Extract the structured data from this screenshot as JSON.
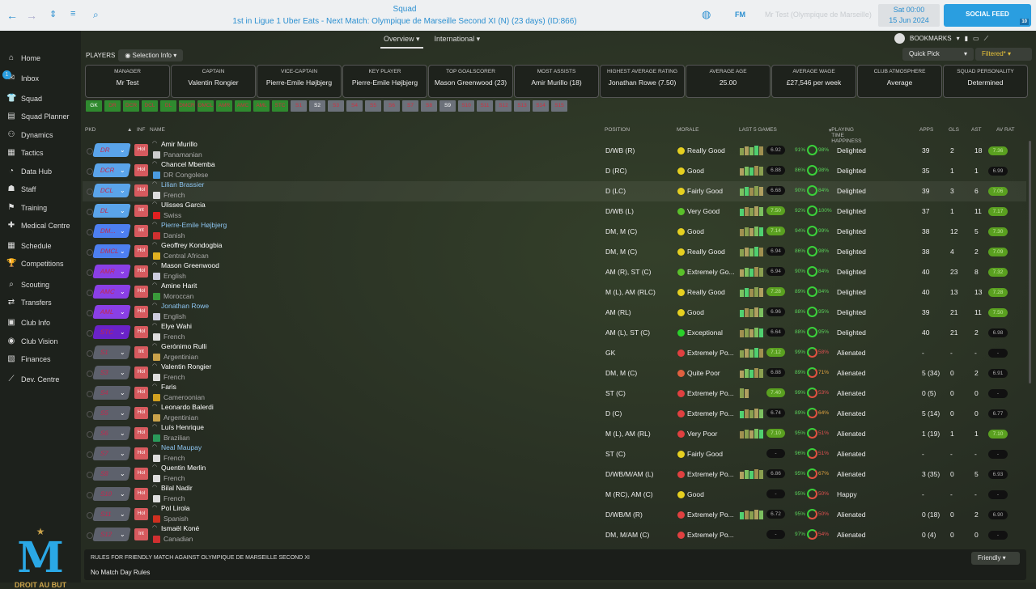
{
  "topbar": {
    "title": "Squad",
    "subtitle": "1st in Ligue 1 Uber Eats - Next Match: Olympique de Marseille Second XI (N) (23 days) (ID:866)",
    "fm": "FM",
    "manager_select": "Mr Test (Olympique de Marseille)",
    "time": "Sat 00:00",
    "date": "15 Jun 2024",
    "social": "SOCIAL FEED",
    "social_count": "10"
  },
  "sidebar": {
    "items": [
      {
        "label": "Home",
        "icon": "⌂"
      },
      {
        "label": "Inbox",
        "icon": "✉"
      },
      {
        "label": "Squad",
        "icon": "👕"
      },
      {
        "label": "Squad Planner",
        "icon": "▤"
      },
      {
        "label": "Dynamics",
        "icon": "⚇"
      },
      {
        "label": "Tactics",
        "icon": "▦"
      },
      {
        "label": "Data Hub",
        "icon": "◔"
      },
      {
        "label": "Staff",
        "icon": "☗"
      },
      {
        "label": "Training",
        "icon": "⚑"
      },
      {
        "label": "Medical Centre",
        "icon": "✚"
      },
      {
        "label": "Schedule",
        "icon": "▦"
      },
      {
        "label": "Competitions",
        "icon": "🏆"
      },
      {
        "label": "Scouting",
        "icon": "⌕"
      },
      {
        "label": "Transfers",
        "icon": "⇄"
      },
      {
        "label": "Club Info",
        "icon": "▣"
      },
      {
        "label": "Club Vision",
        "icon": "◉"
      },
      {
        "label": "Finances",
        "icon": "▧"
      },
      {
        "label": "Dev. Centre",
        "icon": "⟋"
      }
    ],
    "inbox_badge": "1",
    "logo_text": "DROIT AU BUT"
  },
  "subnav": {
    "tabs": [
      "Overview",
      "International"
    ],
    "bookmarks": "BOOKMARKS"
  },
  "toolbar": {
    "players": "PLAYERS",
    "selection_info": "Selection Info",
    "quick_pick": "Quick Pick",
    "filtered": "Filtered*"
  },
  "summary": [
    {
      "label": "MANAGER",
      "value": "Mr Test"
    },
    {
      "label": "CAPTAIN",
      "value": "Valentin Rongier"
    },
    {
      "label": "VICE-CAPTAIN",
      "value": "Pierre-Emile Højbjerg"
    },
    {
      "label": "KEY PLAYER",
      "value": "Pierre-Emile Højbjerg"
    },
    {
      "label": "TOP GOALSCORER",
      "value": "Mason Greenwood (23)"
    },
    {
      "label": "MOST ASSISTS",
      "value": "Amir Murillo (18)"
    },
    {
      "label": "HIGHEST AVERAGE RATING",
      "value": "Jonathan Rowe (7.50)"
    },
    {
      "label": "AVERAGE AGE",
      "value": "25.00"
    },
    {
      "label": "AVERAGE WAGE",
      "value": "£27,546 per week"
    },
    {
      "label": "CLUB ATMOSPHERE",
      "value": "Average"
    },
    {
      "label": "SQUAD PERSONALITY",
      "value": "Determined"
    }
  ],
  "position_chips": [
    {
      "l": "GK",
      "t": "g",
      "w": true
    },
    {
      "l": "DR",
      "t": "g"
    },
    {
      "l": "DCR",
      "t": "g"
    },
    {
      "l": "DCL",
      "t": "g"
    },
    {
      "l": "DL",
      "t": "g"
    },
    {
      "l": "DMCR",
      "t": "g"
    },
    {
      "l": "DMCL",
      "t": "g"
    },
    {
      "l": "AMR",
      "t": "g"
    },
    {
      "l": "AMC",
      "t": "g"
    },
    {
      "l": "AML",
      "t": "g"
    },
    {
      "l": "STC",
      "t": "g"
    },
    {
      "l": "S1",
      "t": "s"
    },
    {
      "l": "S2",
      "t": "s",
      "w": true
    },
    {
      "l": "S3",
      "t": "s"
    },
    {
      "l": "S4",
      "t": "s"
    },
    {
      "l": "S5",
      "t": "s"
    },
    {
      "l": "S6",
      "t": "s"
    },
    {
      "l": "S7",
      "t": "s"
    },
    {
      "l": "S8",
      "t": "s"
    },
    {
      "l": "S9",
      "t": "s",
      "w": true
    },
    {
      "l": "S10",
      "t": "s"
    },
    {
      "l": "S11",
      "t": "s"
    },
    {
      "l": "S12",
      "t": "s"
    },
    {
      "l": "S13",
      "t": "s"
    },
    {
      "l": "S14",
      "t": "s"
    },
    {
      "l": "S15",
      "t": "s"
    }
  ],
  "columns": {
    "pkd": "PKD",
    "inf": "INF",
    "name": "NAME",
    "position": "POSITION",
    "morale": "MORALE",
    "last5": "LAST 5 GAMES",
    "pth": "PLAYING TIME HAPPINESS",
    "apps": "APPS",
    "gls": "GLS",
    "ast": "AST",
    "avrat": "AV RAT"
  },
  "pos_colors": {
    "def": "#5aa4ea",
    "dm": "#4d7ff0",
    "am": "#8a3fe6",
    "st": "#6a22c8",
    "sub": "#5d616c"
  },
  "players": [
    {
      "sel": "DR",
      "c": "def",
      "inf": "Hol",
      "name": "Amir Murillo",
      "nat": "Panamanian",
      "flag": "#ccc",
      "position": "D/WB (R)",
      "morale": "Really Good",
      "mc": "#e6d020",
      "bars": 5,
      "l5": "6.92",
      "l5g": false,
      "ptl": "91%",
      "ptr": "98%",
      "pth": "Delighted",
      "apps": "39",
      "gls": "2",
      "ast": "18",
      "av": "7.36",
      "avg": true
    },
    {
      "sel": "DCR",
      "c": "def",
      "inf": "Hol",
      "name": "Chancel Mbemba",
      "nat": "DR Congolese",
      "flag": "#4a9be0",
      "position": "D (RC)",
      "morale": "Good",
      "mc": "#e6d020",
      "bars": 5,
      "l5": "6.88",
      "l5g": false,
      "ptl": "86%",
      "ptr": "98%",
      "pth": "Delighted",
      "apps": "35",
      "gls": "1",
      "ast": "1",
      "av": "6.99",
      "avg": false
    },
    {
      "sel": "DCL",
      "c": "def",
      "inf": "Hol",
      "name": "Lilian Brassier",
      "blue": true,
      "hl": true,
      "nat": "French",
      "flag": "#ddd",
      "position": "D (LC)",
      "morale": "Fairly Good",
      "mc": "#e6d020",
      "bars": 5,
      "l5": "6.68",
      "l5g": false,
      "ptl": "90%",
      "ptr": "84%",
      "pth": "Delighted",
      "apps": "39",
      "gls": "3",
      "ast": "6",
      "av": "7.06",
      "avg": true
    },
    {
      "sel": "DL",
      "c": "def",
      "inf": "Int",
      "name": "Ulisses Garcia",
      "nat": "Swiss",
      "flag": "#e02020",
      "position": "D/WB (L)",
      "morale": "Very Good",
      "mc": "#5ac02a",
      "bars": 5,
      "l5": "7.50",
      "l5g": true,
      "ptl": "92%",
      "ptr": "100%",
      "pth": "Delighted",
      "apps": "37",
      "gls": "1",
      "ast": "11",
      "av": "7.17",
      "avg": true
    },
    {
      "sel": "DM...",
      "c": "dm",
      "inf": "Int",
      "name": "Pierre-Emile Højbjerg",
      "blue": true,
      "nat": "Danish",
      "flag": "#d03030",
      "position": "DM, M (C)",
      "morale": "Good",
      "mc": "#e6d020",
      "bars": 5,
      "l5": "7.14",
      "l5g": true,
      "ptl": "94%",
      "ptr": "99%",
      "pth": "Delighted",
      "apps": "38",
      "gls": "12",
      "ast": "5",
      "av": "7.30",
      "avg": true
    },
    {
      "sel": "DMCL",
      "c": "dm",
      "inf": "Hol",
      "name": "Geoffrey Kondogbia",
      "nat": "Central African",
      "flag": "#e0b020",
      "position": "DM, M (C)",
      "morale": "Really Good",
      "mc": "#e6d020",
      "bars": 5,
      "l5": "6.94",
      "l5g": false,
      "ptl": "86%",
      "ptr": "98%",
      "pth": "Delighted",
      "apps": "38",
      "gls": "4",
      "ast": "2",
      "av": "7.09",
      "avg": true
    },
    {
      "sel": "AMR",
      "c": "am",
      "inf": "Hol",
      "name": "Mason Greenwood",
      "nat": "English",
      "flag": "#ccd",
      "position": "AM (R), ST (C)",
      "morale": "Extremely Go...",
      "mc": "#5ac02a",
      "bars": 5,
      "l5": "6.94",
      "l5g": false,
      "ptl": "90%",
      "ptr": "84%",
      "pth": "Delighted",
      "apps": "40",
      "gls": "23",
      "ast": "8",
      "av": "7.32",
      "avg": true
    },
    {
      "sel": "AMC",
      "c": "am",
      "inf": "Hol",
      "name": "Amine Harit",
      "nat": "Moroccan",
      "flag": "#3a9a3a",
      "position": "M (L), AM (RLC)",
      "morale": "Really Good",
      "mc": "#e6d020",
      "bars": 5,
      "l5": "7.28",
      "l5g": true,
      "ptl": "89%",
      "ptr": "84%",
      "pth": "Delighted",
      "apps": "40",
      "gls": "13",
      "ast": "13",
      "av": "7.28",
      "avg": true
    },
    {
      "sel": "AML",
      "c": "am",
      "inf": "Hol",
      "name": "Jonathan Rowe",
      "blue": true,
      "nat": "English",
      "flag": "#ccd",
      "position": "AM (RL)",
      "morale": "Good",
      "mc": "#e6d020",
      "bars": 5,
      "l5": "6.96",
      "l5g": false,
      "ptl": "88%",
      "ptr": "95%",
      "pth": "Delighted",
      "apps": "39",
      "gls": "21",
      "ast": "11",
      "av": "7.50",
      "avg": true
    },
    {
      "sel": "STC",
      "c": "st",
      "inf": "Hol",
      "name": "Elye Wahi",
      "nat": "French",
      "flag": "#ddd",
      "position": "AM (L), ST (C)",
      "morale": "Exceptional",
      "mc": "#2ad02a",
      "bars": 5,
      "l5": "6.64",
      "l5g": false,
      "ptl": "88%",
      "ptr": "95%",
      "pth": "Delighted",
      "apps": "40",
      "gls": "21",
      "ast": "2",
      "av": "6.98",
      "avg": false
    },
    {
      "sel": "S1",
      "c": "sub",
      "inf": "Int",
      "name": "Gerónimo Rulli",
      "nat": "Argentinian",
      "flag": "#c9a24a",
      "position": "GK",
      "morale": "Extremely Po...",
      "mc": "#e04040",
      "bars": 5,
      "l5": "7.12",
      "l5g": true,
      "ptl": "99%",
      "ptr": "58%",
      "pth": "Alienated",
      "apps": "-",
      "gls": "-",
      "ast": "-",
      "av": "-",
      "avg": false
    },
    {
      "sel": "S3",
      "c": "sub",
      "inf": "Hol",
      "name": "Valentin Rongier",
      "nat": "French",
      "flag": "#ddd",
      "position": "DM, M (C)",
      "morale": "Quite Poor",
      "mc": "#e06040",
      "bars": 5,
      "l5": "6.88",
      "l5g": false,
      "ptl": "89%",
      "ptr": "71%",
      "pth": "Alienated",
      "apps": "5 (34)",
      "gls": "0",
      "ast": "2",
      "av": "6.91",
      "avg": false
    },
    {
      "sel": "S4",
      "c": "sub",
      "inf": "Hol",
      "name": "Faris",
      "nat": "Cameroonian",
      "flag": "#d0a020",
      "position": "ST (C)",
      "morale": "Extremely Po...",
      "mc": "#e04040",
      "bars": 2,
      "l5": "7.40",
      "l5g": true,
      "ptl": "99%",
      "ptr": "53%",
      "pth": "Alienated",
      "apps": "0 (5)",
      "gls": "0",
      "ast": "0",
      "av": "-",
      "avg": false
    },
    {
      "sel": "S5",
      "c": "sub",
      "inf": "Hol",
      "name": "Leonardo Balerdi",
      "nat": "Argentinian",
      "flag": "#c9a24a",
      "position": "D (C)",
      "morale": "Extremely Po...",
      "mc": "#e04040",
      "bars": 5,
      "l5": "6.74",
      "l5g": false,
      "ptl": "89%",
      "ptr": "64%",
      "pth": "Alienated",
      "apps": "5 (14)",
      "gls": "0",
      "ast": "0",
      "av": "6.77",
      "avg": false
    },
    {
      "sel": "S6",
      "c": "sub",
      "inf": "Hol",
      "name": "Luís Henrique",
      "nat": "Brazilian",
      "flag": "#2a9a5a",
      "position": "M (L), AM (RL)",
      "morale": "Very Poor",
      "mc": "#e04040",
      "bars": 5,
      "l5": "7.10",
      "l5g": true,
      "ptl": "95%",
      "ptr": "51%",
      "pth": "Alienated",
      "apps": "1 (19)",
      "gls": "1",
      "ast": "1",
      "av": "7.10",
      "avg": true
    },
    {
      "sel": "S7",
      "c": "sub",
      "inf": "Hol",
      "name": "Neal Maupay",
      "blue": true,
      "nat": "French",
      "flag": "#ddd",
      "position": "ST (C)",
      "morale": "Fairly Good",
      "mc": "#e6d020",
      "bars": 0,
      "l5": "-",
      "l5g": false,
      "ptl": "96%",
      "ptr": "51%",
      "pth": "Alienated",
      "apps": "-",
      "gls": "-",
      "ast": "-",
      "av": "-",
      "avg": false
    },
    {
      "sel": "S8",
      "c": "sub",
      "inf": "Hol",
      "name": "Quentin Merlin",
      "nat": "French",
      "flag": "#ddd",
      "position": "D/WB/M/AM (L)",
      "morale": "Extremely Po...",
      "mc": "#e04040",
      "bars": 5,
      "l5": "6.86",
      "l5g": false,
      "ptl": "95%",
      "ptr": "67%",
      "pth": "Alienated",
      "apps": "3 (35)",
      "gls": "0",
      "ast": "5",
      "av": "6.93",
      "avg": false
    },
    {
      "sel": "S10",
      "c": "sub",
      "inf": "Hol",
      "name": "Bilal Nadir",
      "nat": "French",
      "flag": "#ddd",
      "position": "M (RC), AM (C)",
      "morale": "Good",
      "mc": "#e6d020",
      "bars": 0,
      "l5": "-",
      "l5g": false,
      "ptl": "95%",
      "ptr": "50%",
      "pth": "Happy",
      "apps": "-",
      "gls": "-",
      "ast": "-",
      "av": "-",
      "avg": false
    },
    {
      "sel": "S11",
      "c": "sub",
      "inf": "Hol",
      "name": "Pol Lirola",
      "nat": "Spanish",
      "flag": "#d03020",
      "position": "D/WB/M (R)",
      "morale": "Extremely Po...",
      "mc": "#e04040",
      "bars": 5,
      "l5": "6.72",
      "l5g": false,
      "ptl": "95%",
      "ptr": "50%",
      "pth": "Alienated",
      "apps": "0 (18)",
      "gls": "0",
      "ast": "2",
      "av": "6.90",
      "avg": false
    },
    {
      "sel": "S12",
      "c": "sub",
      "inf": "Int",
      "name": "Ismaël Koné",
      "nat": "Canadian",
      "flag": "#d03030",
      "position": "DM, M/AM (C)",
      "morale": "Extremely Po...",
      "mc": "#e04040",
      "bars": 0,
      "l5": "-",
      "l5g": false,
      "ptl": "97%",
      "ptr": "54%",
      "pth": "Alienated",
      "apps": "0 (4)",
      "gls": "0",
      "ast": "0",
      "av": "-",
      "avg": false
    }
  ],
  "rules": {
    "title": "RULES FOR FRIENDLY MATCH AGAINST OLYMPIQUE DE MARSEILLE SECOND XI",
    "text": "No Match Day Rules",
    "select": "Friendly"
  }
}
